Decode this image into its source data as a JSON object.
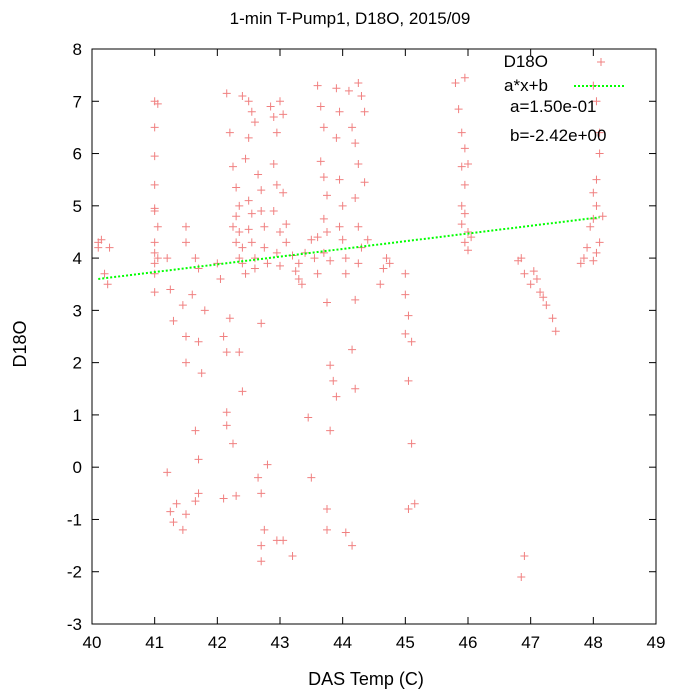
{
  "chart_data": {
    "type": "scatter",
    "title": "1-min T-Pump1, D18O, 2015/09",
    "xlabel": "DAS Temp (C)",
    "ylabel": "D18O",
    "xlim": [
      40,
      49
    ],
    "ylim": [
      -3,
      8
    ],
    "xticks": [
      "40",
      "41",
      "42",
      "43",
      "44",
      "45",
      "46",
      "47",
      "48",
      "49"
    ],
    "yticks": [
      "-3",
      "-2",
      "-1",
      "0",
      "1",
      "2",
      "3",
      "4",
      "5",
      "6",
      "7",
      "8"
    ],
    "grid": false,
    "legend_position": "top-right",
    "series": [
      {
        "name": "D18O",
        "marker": "plus",
        "color": "#f08080",
        "points": [
          [
            40.1,
            4.3
          ],
          [
            40.1,
            4.2
          ],
          [
            40.15,
            4.35
          ],
          [
            40.2,
            3.7
          ],
          [
            40.25,
            3.5
          ],
          [
            40.28,
            4.2
          ],
          [
            41.0,
            7.0
          ],
          [
            41.05,
            6.95
          ],
          [
            41.0,
            6.5
          ],
          [
            41.0,
            5.95
          ],
          [
            41.0,
            5.4
          ],
          [
            41.0,
            4.95
          ],
          [
            41.0,
            4.9
          ],
          [
            41.05,
            4.6
          ],
          [
            41.0,
            4.3
          ],
          [
            41.0,
            4.1
          ],
          [
            41.05,
            4.0
          ],
          [
            41.0,
            3.9
          ],
          [
            41.0,
            3.7
          ],
          [
            41.0,
            3.35
          ],
          [
            41.2,
            4.0
          ],
          [
            41.25,
            3.4
          ],
          [
            41.2,
            -0.1
          ],
          [
            41.25,
            -0.85
          ],
          [
            41.3,
            -1.05
          ],
          [
            41.35,
            -0.7
          ],
          [
            41.3,
            2.8
          ],
          [
            41.5,
            4.6
          ],
          [
            41.5,
            4.3
          ],
          [
            41.45,
            3.1
          ],
          [
            41.5,
            2.5
          ],
          [
            41.5,
            2.0
          ],
          [
            41.45,
            -1.2
          ],
          [
            41.5,
            -0.9
          ],
          [
            41.6,
            3.3
          ],
          [
            41.65,
            4.0
          ],
          [
            41.7,
            3.8
          ],
          [
            41.65,
            0.7
          ],
          [
            41.7,
            0.15
          ],
          [
            41.7,
            -0.5
          ],
          [
            41.65,
            -0.65
          ],
          [
            41.75,
            1.8
          ],
          [
            41.7,
            2.4
          ],
          [
            41.8,
            3.0
          ],
          [
            42.0,
            3.9
          ],
          [
            42.05,
            3.6
          ],
          [
            42.1,
            -0.6
          ],
          [
            42.15,
            1.05
          ],
          [
            42.15,
            0.8
          ],
          [
            42.1,
            2.5
          ],
          [
            42.15,
            2.2
          ],
          [
            42.2,
            2.85
          ],
          [
            42.25,
            0.45
          ],
          [
            42.3,
            -0.55
          ],
          [
            42.35,
            2.2
          ],
          [
            42.4,
            1.45
          ],
          [
            42.15,
            7.15
          ],
          [
            42.2,
            6.4
          ],
          [
            42.25,
            5.75
          ],
          [
            42.3,
            5.35
          ],
          [
            42.35,
            5.0
          ],
          [
            42.3,
            4.8
          ],
          [
            42.25,
            4.6
          ],
          [
            42.35,
            4.5
          ],
          [
            42.4,
            4.2
          ],
          [
            42.3,
            4.3
          ],
          [
            42.35,
            4.0
          ],
          [
            42.4,
            3.9
          ],
          [
            42.45,
            3.7
          ],
          [
            42.5,
            6.3
          ],
          [
            42.45,
            5.9
          ],
          [
            42.4,
            7.1
          ],
          [
            42.5,
            7.0
          ],
          [
            42.55,
            6.8
          ],
          [
            42.5,
            5.1
          ],
          [
            42.55,
            4.85
          ],
          [
            42.5,
            4.55
          ],
          [
            42.55,
            4.3
          ],
          [
            42.6,
            4.0
          ],
          [
            42.6,
            3.8
          ],
          [
            42.6,
            6.6
          ],
          [
            42.65,
            5.6
          ],
          [
            42.7,
            5.3
          ],
          [
            42.7,
            4.9
          ],
          [
            42.75,
            4.6
          ],
          [
            42.75,
            4.2
          ],
          [
            42.8,
            3.9
          ],
          [
            42.7,
            2.75
          ],
          [
            42.65,
            -0.2
          ],
          [
            42.7,
            -0.5
          ],
          [
            42.75,
            -1.2
          ],
          [
            42.7,
            -1.5
          ],
          [
            42.7,
            -1.8
          ],
          [
            42.8,
            0.05
          ],
          [
            42.85,
            6.9
          ],
          [
            42.9,
            6.7
          ],
          [
            42.95,
            6.4
          ],
          [
            42.9,
            5.8
          ],
          [
            42.95,
            5.4
          ],
          [
            42.9,
            4.9
          ],
          [
            43.0,
            4.5
          ],
          [
            42.95,
            4.1
          ],
          [
            43.0,
            3.85
          ],
          [
            43.0,
            7.0
          ],
          [
            43.05,
            6.75
          ],
          [
            43.05,
            5.25
          ],
          [
            43.1,
            4.65
          ],
          [
            43.1,
            4.3
          ],
          [
            42.95,
            -1.4
          ],
          [
            43.05,
            -1.4
          ],
          [
            43.2,
            -1.7
          ],
          [
            43.2,
            4.05
          ],
          [
            43.25,
            3.75
          ],
          [
            43.3,
            3.6
          ],
          [
            43.3,
            3.9
          ],
          [
            43.35,
            3.5
          ],
          [
            43.4,
            4.1
          ],
          [
            43.45,
            0.95
          ],
          [
            43.5,
            -0.2
          ],
          [
            43.5,
            4.35
          ],
          [
            43.55,
            4.0
          ],
          [
            43.6,
            3.7
          ],
          [
            43.6,
            4.4
          ],
          [
            43.6,
            7.3
          ],
          [
            43.65,
            6.9
          ],
          [
            43.7,
            6.5
          ],
          [
            43.65,
            5.85
          ],
          [
            43.7,
            5.55
          ],
          [
            43.75,
            5.2
          ],
          [
            43.7,
            4.75
          ],
          [
            43.75,
            4.5
          ],
          [
            43.7,
            4.1
          ],
          [
            43.8,
            3.95
          ],
          [
            43.75,
            3.15
          ],
          [
            43.8,
            1.95
          ],
          [
            43.85,
            1.65
          ],
          [
            43.8,
            0.7
          ],
          [
            43.75,
            -0.8
          ],
          [
            43.75,
            -1.2
          ],
          [
            43.9,
            7.25
          ],
          [
            43.95,
            6.8
          ],
          [
            43.9,
            6.3
          ],
          [
            43.95,
            5.5
          ],
          [
            44.0,
            5.0
          ],
          [
            43.95,
            4.6
          ],
          [
            44.0,
            4.35
          ],
          [
            44.05,
            4.0
          ],
          [
            44.05,
            3.7
          ],
          [
            43.9,
            1.35
          ],
          [
            44.05,
            -1.25
          ],
          [
            44.15,
            -1.5
          ],
          [
            44.1,
            7.2
          ],
          [
            44.15,
            6.5
          ],
          [
            44.2,
            6.2
          ],
          [
            44.25,
            5.8
          ],
          [
            44.2,
            5.15
          ],
          [
            44.25,
            4.6
          ],
          [
            44.3,
            4.2
          ],
          [
            44.25,
            3.9
          ],
          [
            44.2,
            3.2
          ],
          [
            44.15,
            2.25
          ],
          [
            44.2,
            1.5
          ],
          [
            44.25,
            7.35
          ],
          [
            44.3,
            7.1
          ],
          [
            44.35,
            6.8
          ],
          [
            44.35,
            5.45
          ],
          [
            44.4,
            4.35
          ],
          [
            44.6,
            3.5
          ],
          [
            44.65,
            3.8
          ],
          [
            44.7,
            4.0
          ],
          [
            44.75,
            3.9
          ],
          [
            45.0,
            3.7
          ],
          [
            45.0,
            3.3
          ],
          [
            45.05,
            2.9
          ],
          [
            45.0,
            2.55
          ],
          [
            45.1,
            2.4
          ],
          [
            45.05,
            1.65
          ],
          [
            45.1,
            0.45
          ],
          [
            45.05,
            -0.8
          ],
          [
            45.15,
            -0.7
          ],
          [
            45.8,
            7.35
          ],
          [
            45.85,
            6.85
          ],
          [
            45.9,
            6.4
          ],
          [
            45.95,
            6.1
          ],
          [
            45.9,
            5.75
          ],
          [
            45.95,
            5.4
          ],
          [
            45.9,
            5.0
          ],
          [
            45.95,
            4.85
          ],
          [
            45.9,
            4.65
          ],
          [
            46.0,
            4.5
          ],
          [
            45.95,
            4.3
          ],
          [
            46.0,
            4.15
          ],
          [
            46.05,
            4.4
          ],
          [
            45.95,
            7.45
          ],
          [
            46.0,
            5.8
          ],
          [
            46.8,
            3.95
          ],
          [
            46.85,
            4.0
          ],
          [
            46.9,
            3.7
          ],
          [
            47.0,
            3.5
          ],
          [
            47.05,
            3.75
          ],
          [
            47.1,
            3.6
          ],
          [
            47.15,
            3.35
          ],
          [
            47.2,
            3.25
          ],
          [
            47.25,
            3.1
          ],
          [
            47.35,
            2.85
          ],
          [
            47.4,
            2.6
          ],
          [
            46.9,
            -1.7
          ],
          [
            46.85,
            -2.1
          ],
          [
            47.8,
            3.9
          ],
          [
            47.85,
            4.0
          ],
          [
            47.9,
            4.2
          ],
          [
            47.95,
            4.6
          ],
          [
            48.0,
            4.75
          ],
          [
            48.05,
            5.0
          ],
          [
            48.0,
            5.25
          ],
          [
            48.05,
            5.5
          ],
          [
            48.1,
            6.0
          ],
          [
            48.1,
            6.4
          ],
          [
            48.05,
            7.0
          ],
          [
            48.0,
            7.3
          ],
          [
            48.05,
            4.1
          ],
          [
            48.1,
            4.3
          ],
          [
            48.0,
            3.95
          ],
          [
            48.15,
            4.8
          ]
        ]
      },
      {
        "name": "a*x+b",
        "style": "dotted-line",
        "color": "#00ff00",
        "x": [
          40.1,
          48.1
        ],
        "y": [
          3.6,
          4.78
        ]
      }
    ],
    "annotations": [
      "a=1.50e-01",
      "b=-2.42e+00"
    ]
  }
}
